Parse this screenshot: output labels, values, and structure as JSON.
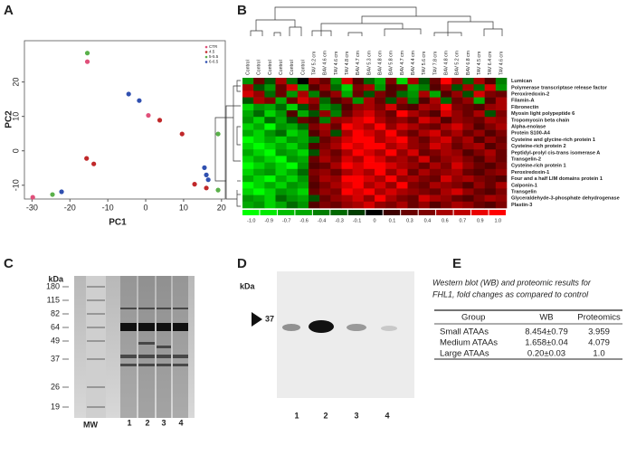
{
  "panel_labels": [
    "A",
    "B",
    "C",
    "D",
    "E"
  ],
  "pca": {
    "type": "scatter",
    "xlabel": "PC1",
    "ylabel": "PC2",
    "xlim": [
      -32,
      21
    ],
    "ylim": [
      -14,
      32
    ],
    "xticks": [
      -30,
      -20,
      -10,
      0,
      10,
      20
    ],
    "yticks": [
      -10,
      0,
      10,
      20
    ],
    "series": [
      {
        "name": "CTR",
        "color": "#e0507a",
        "x": [
          -15.4,
          0.7,
          -29.8
        ],
        "values": [
          25.9,
          10.3,
          -13.5
        ]
      },
      {
        "name": "4.5",
        "color": "#c0282a",
        "x": [
          3.7,
          9.6,
          -13.7,
          -15.6,
          12.9,
          16.0
        ],
        "values": [
          8.9,
          4.9,
          -3.8,
          -2.2,
          -9.7,
          -10.8
        ]
      },
      {
        "name": "5-5.5",
        "color": "#5ab04a",
        "x": [
          -15.4,
          19.1,
          -24.6,
          19.1
        ],
        "values": [
          28.4,
          4.9,
          -12.7,
          -11.4
        ]
      },
      {
        "name": "6-6.5",
        "color": "#3050b0",
        "x": [
          -4.5,
          -1.7,
          -22.2,
          15.5,
          16.0,
          16.5
        ],
        "values": [
          16.5,
          14.6,
          -11.9,
          -4.9,
          -7.0,
          -8.4
        ]
      }
    ]
  },
  "heatmap": {
    "columns": [
      "Control",
      "Control",
      "Control",
      "Control",
      "Control",
      "Control",
      "TAV 5.2 cm",
      "BAV 4.6 cm",
      "TAV 4.6 cm",
      "TAV 4.8 cm",
      "BAV 4.7 cm",
      "BAV 5.3 cm",
      "BAV 4.8 cm",
      "BAV 5.8 cm",
      "BAV 4.7 cm",
      "BAV 4.4 cm",
      "TAV 5.6 cm",
      "TAV 7.8 cm",
      "BAV 4.8 cm",
      "BAV 5.2 cm",
      "BAV 6.8 cm",
      "TAV 4.5 cm",
      "TAV 6.4 cm",
      "TAV 4.6 cm"
    ],
    "rows": [
      "Lumican",
      "Polymerase transcriptase release factor",
      "Peroxiredoxin-2",
      "Filamin-A",
      "Fibronectin",
      "Myosin light polypeptide 6",
      "Tropomyosin beta chain",
      "Alpha-enolase",
      "Protein S100-A4",
      "Cysteine and glycine-rich protein 1",
      "Cysteine-rich protein 2",
      "Peptidyl-prolyl cis-trans isomerase A",
      "Transgelin-2",
      "Cysteine-rich protein 1",
      "Peroxiredoxin-1",
      "Four and a half LIM domains protein 1",
      "Calponin-1",
      "Transgelin",
      "Glyceraldehyde-3-phosphate dehydrogenase",
      "Plastin-3"
    ],
    "values": [
      [
        -0.5,
        0.3,
        -0.2,
        0.6,
        -0.3,
        0,
        0.5,
        0.3,
        -0.5,
        0.8,
        0.2,
        -0.3,
        -0.6,
        0.4,
        -0.8,
        0.6,
        -0.2,
        0.3,
        1,
        0.5,
        -0.3,
        0.6,
        0.2,
        -0.4
      ],
      [
        0.6,
        -0.2,
        -0.5,
        0.3,
        0.8,
        -0.6,
        0.2,
        0.5,
        -0.3,
        -0.8,
        0.4,
        0.6,
        -0.5,
        0.2,
        0.3,
        -0.6,
        -0.4,
        0.2,
        0.5,
        -0.2,
        0.6,
        -0.3,
        0.8,
        -0.5
      ],
      [
        0.8,
        0.5,
        -0.3,
        0.3,
        -0.5,
        0.6,
        -0.4,
        0.2,
        0.5,
        -0.6,
        0.3,
        -0.2,
        0.4,
        0.2,
        -0.3,
        -0.5,
        0.6,
        -0.6,
        0.2,
        0.5,
        -0.2,
        0.8,
        0.4,
        0.3
      ],
      [
        -0.2,
        0.6,
        0.4,
        -0.6,
        0.3,
        0.8,
        0.5,
        -0.3,
        0.2,
        0.4,
        -0.5,
        0.6,
        0.3,
        -0.2,
        0.5,
        -0.4,
        0.2,
        0.6,
        -0.3,
        0.3,
        0.5,
        -0.6,
        0.2,
        0.6
      ],
      [
        -0.8,
        -0.5,
        -0.6,
        -0.3,
        -0.8,
        -0.2,
        0.3,
        -0.5,
        -0.3,
        0.2,
        0.5,
        0.6,
        0.4,
        0.8,
        0.3,
        0.2,
        0.6,
        0.5,
        1,
        0.4,
        0.3,
        0.2,
        0.5,
        0.6
      ],
      [
        -0.6,
        -0.3,
        -0.8,
        -0.5,
        0.2,
        -0.6,
        -0.2,
        0.5,
        -0.4,
        0.3,
        0.6,
        0.8,
        0.5,
        0.3,
        1,
        0.6,
        0.4,
        0.2,
        0.8,
        0.5,
        0.3,
        0.6,
        -0.2,
        0.4
      ],
      [
        -0.5,
        -0.8,
        -0.3,
        -0.6,
        -0.2,
        0.3,
        0.2,
        -0.4,
        0.5,
        0.6,
        0.8,
        1,
        0.6,
        0.4,
        0.5,
        0.3,
        0.8,
        0.6,
        0.2,
        0.5,
        0.4,
        0.3,
        0.6,
        0.5
      ],
      [
        -0.8,
        -0.6,
        -1,
        -0.5,
        -0.6,
        -0.3,
        0.4,
        0.6,
        0.3,
        1,
        0.8,
        0.6,
        1,
        0.5,
        0.8,
        0.6,
        0.4,
        0.3,
        0.6,
        0.8,
        0.5,
        0.2,
        0.4,
        0.6
      ],
      [
        -0.6,
        -0.8,
        -0.5,
        -0.3,
        -0.8,
        -0.6,
        0.2,
        0.5,
        -0.2,
        0.6,
        1,
        0.8,
        0.6,
        1,
        0.5,
        0.3,
        0.6,
        0.8,
        0.4,
        0.6,
        0.3,
        0.5,
        0.2,
        0.4
      ],
      [
        -1,
        -0.8,
        -0.6,
        -0.8,
        -0.5,
        -0.6,
        -0.3,
        0.3,
        0.5,
        0.8,
        1,
        1,
        0.6,
        0.8,
        1,
        0.5,
        0.3,
        0.6,
        0.8,
        0.4,
        0.6,
        0.2,
        0.5,
        0.3
      ],
      [
        -0.8,
        -1,
        -0.8,
        -0.6,
        -0.8,
        -0.5,
        0.2,
        0.4,
        0.6,
        1,
        0.8,
        1,
        1,
        0.6,
        0.8,
        0.5,
        0.4,
        0.8,
        0.6,
        0.3,
        0.5,
        0.6,
        0.2,
        0.4
      ],
      [
        -0.6,
        -0.8,
        -1,
        -0.5,
        -0.6,
        -0.8,
        -0.2,
        0.5,
        0.3,
        0.6,
        1,
        0.8,
        0.6,
        1,
        0.5,
        0.8,
        0.3,
        0.4,
        0.6,
        0.5,
        0.2,
        0.4,
        0.6,
        0.3
      ],
      [
        -0.8,
        -0.6,
        -0.8,
        -1,
        -0.5,
        -0.6,
        0.3,
        0.6,
        0.4,
        0.8,
        0.6,
        1,
        0.8,
        0.5,
        0.6,
        0.4,
        0.8,
        0.3,
        0.5,
        0.6,
        0.4,
        0.2,
        0.5,
        0.3
      ],
      [
        -1,
        -0.8,
        -0.6,
        -0.8,
        -1,
        -0.5,
        0.2,
        0.3,
        0.6,
        1,
        0.8,
        1,
        1,
        0.8,
        0.6,
        0.5,
        0.3,
        0.6,
        0.4,
        0.8,
        0.5,
        0.3,
        0.2,
        0.4
      ],
      [
        -0.8,
        -0.6,
        -0.5,
        -0.8,
        -0.6,
        -0.3,
        0.4,
        0.5,
        0.3,
        0.6,
        0.8,
        0.6,
        1,
        0.5,
        0.8,
        0.3,
        0.6,
        0.4,
        0.5,
        0.6,
        0.3,
        0.2,
        0.4,
        0.5
      ],
      [
        -0.6,
        -0.8,
        -1,
        -0.6,
        -0.8,
        -0.5,
        0.3,
        0.6,
        0.5,
        1,
        1,
        0.8,
        0.6,
        1,
        0.5,
        0.6,
        0.4,
        0.3,
        0.8,
        0.5,
        0.6,
        0.4,
        0.3,
        0.2
      ],
      [
        -1,
        -0.8,
        -0.6,
        -0.8,
        -0.5,
        -0.6,
        0.2,
        0.4,
        0.6,
        0.8,
        1,
        0.6,
        0.8,
        0.5,
        1,
        0.4,
        0.3,
        0.6,
        0.5,
        0.4,
        0.2,
        0.5,
        0.3,
        0.6
      ],
      [
        -0.8,
        -1,
        -0.8,
        -0.5,
        -0.6,
        -0.8,
        0.3,
        0.5,
        0.4,
        1,
        0.8,
        1,
        0.6,
        0.8,
        0.6,
        0.5,
        0.4,
        0.3,
        0.6,
        0.8,
        0.5,
        0.3,
        0.2,
        0.4
      ],
      [
        -0.5,
        -0.6,
        -0.8,
        -0.3,
        -0.5,
        -0.6,
        -0.2,
        0.3,
        0.5,
        0.6,
        0.8,
        0.5,
        1,
        0.6,
        0.4,
        0.3,
        0.8,
        0.6,
        0.5,
        0.3,
        0.2,
        0.4,
        0.6,
        0.5
      ],
      [
        -0.6,
        -0.5,
        -0.8,
        -0.6,
        -0.3,
        -0.5,
        0.2,
        0.4,
        0.3,
        0.5,
        0.6,
        0.8,
        0.5,
        0.4,
        0.6,
        0.3,
        0.5,
        0.2,
        0.4,
        0.6,
        0.5,
        0.3,
        0.2,
        0.4
      ]
    ],
    "scale_ticks": [
      {
        "value": -1,
        "label": "-1.0"
      },
      -0.9,
      -0.7,
      -0.6,
      -0.4,
      -0.3,
      -0.1,
      0,
      0.1,
      0.3,
      0.4,
      0.6,
      0.7,
      0.9,
      {
        "value": 1,
        "label": "1.0"
      }
    ]
  },
  "gel": {
    "unit": "kDa",
    "markers": [
      "180",
      "115",
      "82",
      "64",
      "49",
      "37",
      "26",
      "19"
    ],
    "lanes": [
      "MW",
      "1",
      "2",
      "3",
      "4"
    ]
  },
  "blot": {
    "unit": "kDa",
    "marker": "37",
    "lanes": [
      "1",
      "2",
      "3",
      "4"
    ]
  },
  "table": {
    "caption": [
      "Western blot (WB) and proteomic results for",
      "FHL1, fold changes as compared to control"
    ],
    "header": [
      "Group",
      "WB",
      "Proteomics"
    ],
    "rows": [
      [
        "Small ATAAs",
        "8.454±0.79",
        "3.959"
      ],
      [
        "Medium ATAAs",
        "1.658±0.04",
        "4.079"
      ],
      [
        "Large ATAAs",
        "0.20±0.03",
        "1.0"
      ]
    ]
  }
}
